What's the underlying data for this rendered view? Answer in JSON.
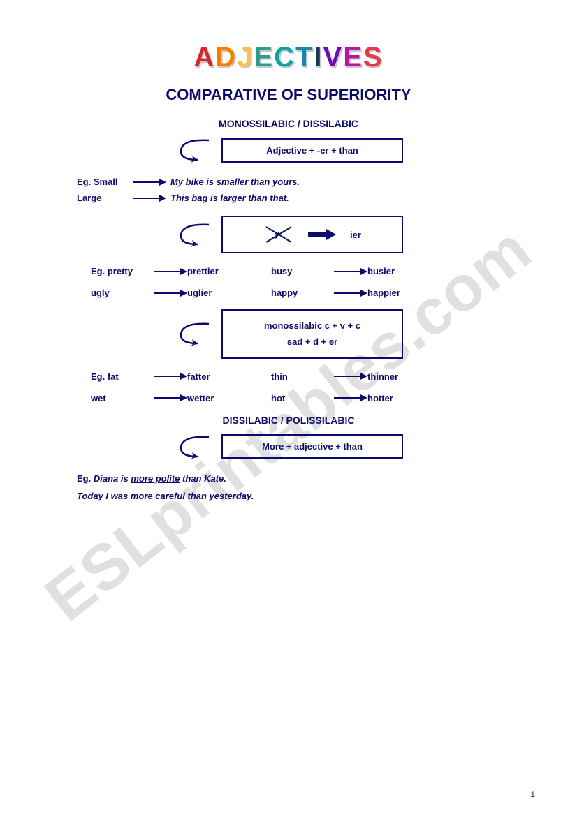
{
  "title": {
    "letters": [
      "A",
      "D",
      "J",
      "E",
      "C",
      "T",
      "I",
      "V",
      "E",
      "S"
    ],
    "colors": [
      "#d62828",
      "#f77f00",
      "#fcbf49",
      "#2a9d8f",
      "#0aa3a3",
      "#118ab2",
      "#1d3557",
      "#7209b7",
      "#b5179e",
      "#e63946"
    ]
  },
  "subtitle": "COMPARATIVE OF SUPERIORITY",
  "section1": {
    "head": "MONOSSILABIC / DISSILABIC",
    "rule": "Adjective + -er + than",
    "eg": [
      {
        "label": "Eg. Small",
        "sentence_pre": "My bike is small",
        "ul": "er",
        "sentence_post": " than yours."
      },
      {
        "label": "Large",
        "sentence_pre": "This bag is larg",
        "ul": "er",
        "sentence_post": " than that."
      }
    ]
  },
  "section2": {
    "y_label": "y",
    "ier": "ier",
    "pairs": [
      {
        "label": "Eg. pretty",
        "res": "prettier",
        "label2": "busy",
        "res2": "busier"
      },
      {
        "label": "ugly",
        "res": "uglier",
        "label2": "happy",
        "res2": "happier"
      }
    ]
  },
  "section3": {
    "rule_line1": "monossilabic   c + v + c",
    "rule_line2": "sad + d + er",
    "pairs": [
      {
        "label": "Eg. fat",
        "res": "fatter",
        "label2": "thin",
        "res2": "thinner"
      },
      {
        "label": "wet",
        "res": "wetter",
        "label2": "hot",
        "res2": "hotter"
      }
    ]
  },
  "section4": {
    "head": "DISSILABIC / POLISSILABIC",
    "rule": "More + adjective + than",
    "eg": [
      {
        "lead": "Eg. ",
        "pre": "Diana is ",
        "ul": "more polite",
        "post": " than Kate."
      },
      {
        "lead": "",
        "pre": "Today I was ",
        "ul": "more careful",
        "post": " than yesterday."
      }
    ]
  },
  "watermark": "ESLprintables.com",
  "page_number": "1",
  "colors": {
    "ink": "#0b0b6b",
    "watermark": "rgba(0,0,0,0.12)",
    "bg": "#ffffff"
  }
}
